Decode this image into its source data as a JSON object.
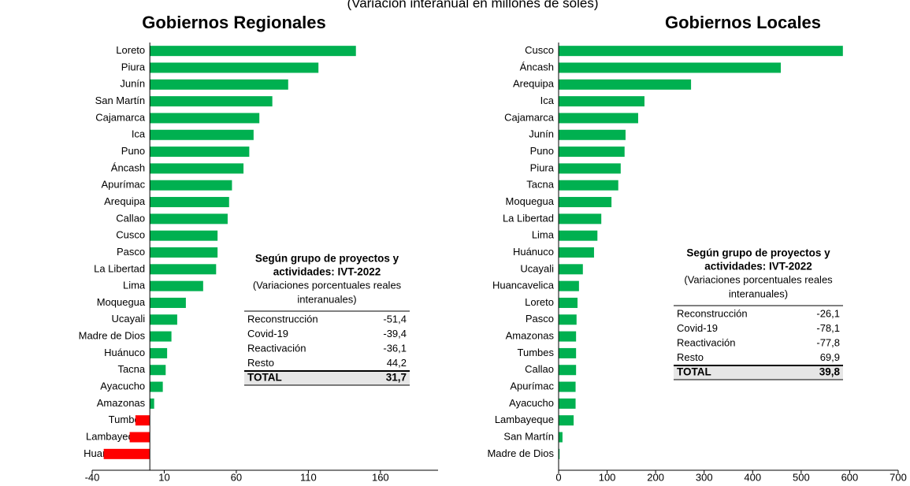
{
  "subtitle": "(Variación interanual en millones de soles)",
  "chart_data": [
    {
      "type": "bar",
      "orientation": "horizontal",
      "title": "Gobiernos Regionales",
      "categories": [
        "Loreto",
        "Piura",
        "Junín",
        "San Martín",
        "Cajamarca",
        "Ica",
        "Puno",
        "Áncash",
        "Apurímac",
        "Arequipa",
        "Callao",
        "Cusco",
        "Pasco",
        "La Libertad",
        "Lima",
        "Moquegua",
        "Ucayali",
        "Madre de Dios",
        "Huánuco",
        "Tacna",
        "Ayacucho",
        "Amazonas",
        "Tumbes",
        "Lambayeque",
        "Huancavelica"
      ],
      "values": [
        143,
        117,
        96,
        85,
        76,
        72,
        69,
        65,
        57,
        55,
        54,
        47,
        47,
        46,
        37,
        25,
        19,
        15,
        12,
        11,
        9,
        3,
        -10,
        -14,
        -32
      ],
      "color": "#00b050",
      "negative_color": "#ff0000",
      "xlim": [
        -40,
        200
      ],
      "xticks": [
        -40,
        10,
        60,
        110,
        160
      ],
      "table": {
        "title_lines": [
          "Según grupo de proyectos y",
          "actividades: IVT-2022"
        ],
        "subtitle_lines": [
          "(Variaciones porcentuales reales",
          "interanuales)"
        ],
        "rows": [
          [
            "Reconstrucción",
            "-51,4"
          ],
          [
            "Covid-19",
            "-39,4"
          ],
          [
            "Reactivación",
            "-36,1"
          ],
          [
            "Resto",
            "44,2"
          ]
        ],
        "total": [
          "TOTAL",
          "31,7"
        ]
      }
    },
    {
      "type": "bar",
      "orientation": "horizontal",
      "title": "Gobiernos Locales",
      "categories": [
        "Cusco",
        "Áncash",
        "Arequipa",
        "Ica",
        "Cajamarca",
        "Junín",
        "Puno",
        "Piura",
        "Tacna",
        "Moquegua",
        "La Libertad",
        "Lima",
        "Huánuco",
        "Ucayali",
        "Huancavelica",
        "Loreto",
        "Pasco",
        "Amazonas",
        "Tumbes",
        "Callao",
        "Apurímac",
        "Ayacucho",
        "Lambayeque",
        "San Martín",
        "Madre de Dios"
      ],
      "values": [
        586,
        458,
        273,
        177,
        164,
        138,
        136,
        128,
        123,
        109,
        88,
        80,
        73,
        50,
        42,
        39,
        37,
        36,
        36,
        36,
        35,
        35,
        31,
        8,
        2
      ],
      "color": "#00b050",
      "negative_color": "#ff0000",
      "xlim": [
        0,
        700
      ],
      "xticks": [
        0,
        100,
        200,
        300,
        400,
        500,
        600,
        700
      ],
      "table": {
        "title_lines": [
          "Según grupo de proyectos y",
          "actividades: IVT-2022"
        ],
        "subtitle_lines": [
          "(Variaciones porcentuales reales",
          "interanuales)"
        ],
        "rows": [
          [
            "Reconstrucción",
            "-26,1"
          ],
          [
            "Covid-19",
            "-78,1"
          ],
          [
            "Reactivación",
            "-77,8"
          ],
          [
            "Resto",
            "69,9"
          ]
        ],
        "total": [
          "TOTAL",
          "39,8"
        ]
      }
    }
  ]
}
